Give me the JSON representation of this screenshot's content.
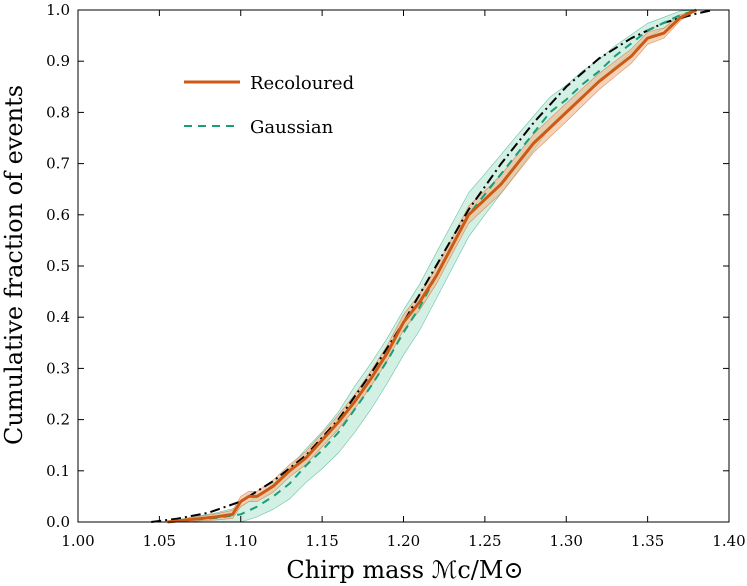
{
  "chart_data": {
    "type": "line",
    "title": "",
    "xlabel": "Chirp mass ℳc/M⊙",
    "ylabel": "Cumulative fraction of events",
    "xlim": [
      1.0,
      1.4
    ],
    "ylim": [
      0.0,
      1.0
    ],
    "xticks": [
      "1.00",
      "1.05",
      "1.10",
      "1.15",
      "1.20",
      "1.25",
      "1.30",
      "1.35",
      "1.40"
    ],
    "yticks": [
      "0.0",
      "0.1",
      "0.2",
      "0.3",
      "0.4",
      "0.5",
      "0.6",
      "0.7",
      "0.8",
      "0.9",
      "1.0"
    ],
    "legend_position": "upper-left",
    "series": [
      {
        "name": "Recoloured",
        "style": "solid",
        "color": "#cc5a14",
        "band_color": "#f0b48a",
        "x": [
          1.055,
          1.07,
          1.085,
          1.095,
          1.1,
          1.105,
          1.11,
          1.12,
          1.13,
          1.14,
          1.15,
          1.16,
          1.17,
          1.18,
          1.19,
          1.2,
          1.21,
          1.22,
          1.23,
          1.24,
          1.25,
          1.26,
          1.27,
          1.28,
          1.29,
          1.3,
          1.31,
          1.32,
          1.33,
          1.34,
          1.35,
          1.36,
          1.37,
          1.38
        ],
        "y": [
          0.0,
          0.005,
          0.01,
          0.015,
          0.04,
          0.05,
          0.05,
          0.07,
          0.1,
          0.125,
          0.16,
          0.195,
          0.235,
          0.28,
          0.33,
          0.39,
          0.43,
          0.48,
          0.54,
          0.6,
          0.63,
          0.66,
          0.7,
          0.74,
          0.77,
          0.8,
          0.83,
          0.86,
          0.885,
          0.91,
          0.945,
          0.955,
          0.985,
          1.0
        ],
        "band_width": [
          0.0,
          0.004,
          0.006,
          0.008,
          0.01,
          0.01,
          0.01,
          0.012,
          0.012,
          0.013,
          0.013,
          0.014,
          0.014,
          0.015,
          0.015,
          0.015,
          0.016,
          0.016,
          0.016,
          0.017,
          0.017,
          0.018,
          0.018,
          0.018,
          0.018,
          0.018,
          0.017,
          0.016,
          0.015,
          0.014,
          0.012,
          0.01,
          0.006,
          0.0
        ]
      },
      {
        "name": "Gaussian",
        "style": "dashed",
        "color": "#1a9e77",
        "band_color": "#b5e6d3",
        "x": [
          1.055,
          1.07,
          1.085,
          1.1,
          1.11,
          1.12,
          1.13,
          1.14,
          1.15,
          1.16,
          1.17,
          1.18,
          1.19,
          1.2,
          1.21,
          1.22,
          1.23,
          1.24,
          1.25,
          1.26,
          1.27,
          1.28,
          1.29,
          1.3,
          1.31,
          1.32,
          1.33,
          1.34,
          1.35,
          1.36,
          1.37,
          1.38
        ],
        "y": [
          0.0,
          0.004,
          0.008,
          0.015,
          0.03,
          0.05,
          0.075,
          0.11,
          0.14,
          0.175,
          0.22,
          0.265,
          0.315,
          0.37,
          0.42,
          0.48,
          0.54,
          0.6,
          0.64,
          0.68,
          0.72,
          0.76,
          0.8,
          0.825,
          0.855,
          0.88,
          0.91,
          0.935,
          0.96,
          0.975,
          0.99,
          1.0
        ],
        "band_width": [
          0.0,
          0.006,
          0.01,
          0.015,
          0.02,
          0.025,
          0.03,
          0.033,
          0.036,
          0.04,
          0.045,
          0.045,
          0.044,
          0.044,
          0.045,
          0.045,
          0.044,
          0.043,
          0.04,
          0.038,
          0.036,
          0.033,
          0.03,
          0.028,
          0.026,
          0.023,
          0.02,
          0.017,
          0.014,
          0.011,
          0.008,
          0.0
        ]
      },
      {
        "name": "",
        "style": "dashdot",
        "color": "#000000",
        "x": [
          1.045,
          1.06,
          1.08,
          1.1,
          1.12,
          1.14,
          1.16,
          1.18,
          1.2,
          1.22,
          1.24,
          1.26,
          1.28,
          1.3,
          1.32,
          1.34,
          1.36,
          1.38,
          1.39
        ],
        "y": [
          0.0,
          0.006,
          0.018,
          0.04,
          0.08,
          0.13,
          0.2,
          0.29,
          0.39,
          0.5,
          0.61,
          0.7,
          0.78,
          0.85,
          0.905,
          0.945,
          0.975,
          0.993,
          1.0
        ]
      }
    ]
  }
}
